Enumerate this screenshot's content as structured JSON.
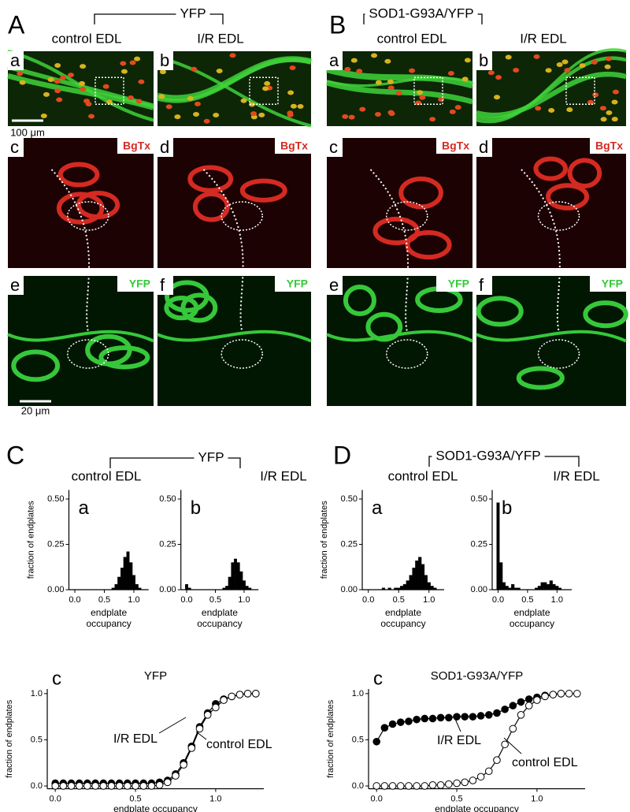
{
  "figure": {
    "image_panels": [
      {
        "letter": "A",
        "group": "YFP",
        "columns": [
          "control EDL",
          "I/R EDL"
        ],
        "tiles": [
          [
            "a",
            "b"
          ],
          [
            "c",
            "d"
          ],
          [
            "e",
            "f"
          ]
        ],
        "stains": [
          "BgTx",
          "YFP"
        ],
        "scale_bars": [
          "100 μm",
          "20 μm"
        ]
      },
      {
        "letter": "B",
        "group": "SOD1-G93A/YFP",
        "columns": [
          "control EDL",
          "I/R EDL"
        ],
        "tiles": [
          [
            "a",
            "b"
          ],
          [
            "c",
            "d"
          ],
          [
            "e",
            "f"
          ]
        ],
        "stains": [
          "BgTx",
          "YFP"
        ]
      }
    ],
    "chart_panels": [
      {
        "letter": "C",
        "group": "YFP",
        "columns": [
          "control EDL",
          "I/R EDL"
        ]
      },
      {
        "letter": "D",
        "group": "SOD1-G93A/YFP",
        "columns": [
          "control EDL",
          "I/R EDL"
        ]
      }
    ]
  },
  "chart_data": [
    {
      "type": "histogram",
      "panel_label": "a",
      "y_label": "fraction of endplates",
      "x_label": "endplate occupancy",
      "color": "#000000",
      "bins": [
        -0.025,
        0.025,
        0.075,
        0.125,
        0.175,
        0.225,
        0.275,
        0.325,
        0.375,
        0.425,
        0.475,
        0.525,
        0.575,
        0.625,
        0.675,
        0.725,
        0.775,
        0.825,
        0.875,
        0.925,
        0.975,
        1.025,
        1.075,
        1.125,
        1.175,
        1.225
      ],
      "values": [
        0,
        0,
        0,
        0,
        0,
        0,
        0,
        0,
        0,
        0,
        0,
        0,
        0,
        0.01,
        0.03,
        0.07,
        0.12,
        0.18,
        0.21,
        0.15,
        0.08,
        0.03,
        0.01,
        0,
        0
      ],
      "xlim": [
        -0.1,
        1.25
      ],
      "xticks": [
        {
          "value": 0,
          "label": "0.0"
        },
        {
          "value": 0.5,
          "label": "0.5"
        },
        {
          "value": 1,
          "label": "1.0"
        }
      ],
      "ylim": [
        0,
        0.55
      ],
      "yticks": [
        {
          "value": 0,
          "label": "0.00"
        },
        {
          "value": 0.25,
          "label": "0.25"
        },
        {
          "value": 0.5,
          "label": "0.50"
        }
      ]
    },
    {
      "type": "histogram",
      "panel_label": "b",
      "x_label": "endplate occupancy",
      "color": "#000000",
      "bins": [
        -0.025,
        0.025,
        0.075,
        0.125,
        0.175,
        0.225,
        0.275,
        0.325,
        0.375,
        0.425,
        0.475,
        0.525,
        0.575,
        0.625,
        0.675,
        0.725,
        0.775,
        0.825,
        0.875,
        0.925,
        0.975,
        1.025,
        1.075,
        1.125,
        1.175,
        1.225
      ],
      "values": [
        0.03,
        0.01,
        0,
        0,
        0,
        0,
        0,
        0,
        0,
        0,
        0,
        0,
        0,
        0.01,
        0.02,
        0.07,
        0.15,
        0.17,
        0.15,
        0.1,
        0.05,
        0.02,
        0.01,
        0,
        0
      ],
      "xlim": [
        -0.1,
        1.25
      ],
      "xticks": [
        {
          "value": 0,
          "label": "0.0"
        },
        {
          "value": 0.5,
          "label": "0.5"
        },
        {
          "value": 1,
          "label": "1.0"
        }
      ],
      "ylim": [
        0,
        0.55
      ],
      "yticks": [
        {
          "value": 0,
          "label": "0.00"
        },
        {
          "value": 0.25,
          "label": "0.25"
        },
        {
          "value": 0.5,
          "label": "0.50"
        }
      ]
    },
    {
      "type": "histogram",
      "panel_label": "a",
      "y_label": "fraction of endplates",
      "x_label": "endplate occupancy",
      "color": "#000000",
      "bins": [
        -0.025,
        0.025,
        0.075,
        0.125,
        0.175,
        0.225,
        0.275,
        0.325,
        0.375,
        0.425,
        0.475,
        0.525,
        0.575,
        0.625,
        0.675,
        0.725,
        0.775,
        0.825,
        0.875,
        0.925,
        0.975,
        1.025,
        1.075,
        1.125,
        1.175,
        1.225
      ],
      "values": [
        0,
        0,
        0,
        0,
        0,
        0.01,
        0,
        0.01,
        0,
        0.01,
        0.01,
        0.02,
        0.03,
        0.05,
        0.08,
        0.12,
        0.16,
        0.18,
        0.14,
        0.08,
        0.04,
        0.02,
        0.01,
        0,
        0
      ],
      "xlim": [
        -0.1,
        1.25
      ],
      "xticks": [
        {
          "value": 0,
          "label": "0.0"
        },
        {
          "value": 0.5,
          "label": "0.5"
        },
        {
          "value": 1,
          "label": "1.0"
        }
      ],
      "ylim": [
        0,
        0.55
      ],
      "yticks": [
        {
          "value": 0,
          "label": "0.00"
        },
        {
          "value": 0.25,
          "label": "0.25"
        },
        {
          "value": 0.5,
          "label": "0.50"
        }
      ]
    },
    {
      "type": "histogram",
      "panel_label": "b",
      "x_label": "endplate occupancy",
      "color": "#000000",
      "bins": [
        -0.025,
        0.025,
        0.075,
        0.125,
        0.175,
        0.225,
        0.275,
        0.325,
        0.375,
        0.425,
        0.475,
        0.525,
        0.575,
        0.625,
        0.675,
        0.725,
        0.775,
        0.825,
        0.875,
        0.925,
        0.975,
        1.025,
        1.075,
        1.125,
        1.175,
        1.225
      ],
      "values": [
        0.48,
        0.15,
        0.04,
        0.02,
        0.01,
        0.03,
        0.01,
        0.01,
        0,
        0,
        0,
        0,
        0,
        0.01,
        0.02,
        0.04,
        0.04,
        0.03,
        0.05,
        0.03,
        0.02,
        0.01,
        0,
        0,
        0
      ],
      "xlim": [
        -0.1,
        1.25
      ],
      "xticks": [
        {
          "value": 0,
          "label": "0.0"
        },
        {
          "value": 0.5,
          "label": "0.5"
        },
        {
          "value": 1,
          "label": "1.0"
        }
      ],
      "ylim": [
        0,
        0.55
      ],
      "yticks": [
        {
          "value": 0,
          "label": "0.00"
        },
        {
          "value": 0.25,
          "label": "0.25"
        },
        {
          "value": 0.5,
          "label": "0.50"
        }
      ]
    },
    {
      "type": "line",
      "title": "YFP",
      "panel_label": "c",
      "y_label": "fraction of endplates",
      "x_label": "endplate occupancy",
      "x": [
        0,
        0.05,
        0.1,
        0.15,
        0.2,
        0.25,
        0.3,
        0.35,
        0.4,
        0.45,
        0.5,
        0.55,
        0.6,
        0.65,
        0.7,
        0.75,
        0.8,
        0.85,
        0.9,
        0.95,
        1,
        1.05,
        1.1,
        1.15,
        1.2,
        1.25
      ],
      "series": [
        {
          "name": "I/R EDL",
          "color": "#000000",
          "marker": "filled",
          "values": [
            0.03,
            0.03,
            0.03,
            0.03,
            0.03,
            0.03,
            0.03,
            0.03,
            0.03,
            0.03,
            0.03,
            0.03,
            0.03,
            0.04,
            0.06,
            0.13,
            0.25,
            0.43,
            0.64,
            0.79,
            0.89,
            0.94,
            0.97,
            0.99,
            1,
            1
          ]
        },
        {
          "name": "control EDL",
          "color": "#000000",
          "marker": "open",
          "values": [
            0,
            0,
            0,
            0,
            0,
            0,
            0,
            0,
            0,
            0,
            0,
            0,
            0,
            0.01,
            0.04,
            0.11,
            0.23,
            0.41,
            0.62,
            0.77,
            0.85,
            0.93,
            0.97,
            0.99,
            1,
            1
          ]
        }
      ],
      "xlim": [
        -0.05,
        1.3
      ],
      "xticks": [
        {
          "value": 0,
          "label": "0.0"
        },
        {
          "value": 0.5,
          "label": "0.5"
        },
        {
          "value": 1,
          "label": "1.0"
        }
      ],
      "ylim": [
        -0.03,
        1.05
      ],
      "yticks": [
        {
          "value": 0,
          "label": "0.0"
        },
        {
          "value": 0.5,
          "label": "0.5"
        },
        {
          "value": 1,
          "label": "1.0"
        }
      ]
    },
    {
      "type": "line",
      "title": "SOD1-G93A/YFP",
      "panel_label": "c",
      "y_label": "fraction of endplates",
      "x_label": "endplate occupancy",
      "x": [
        0,
        0.05,
        0.1,
        0.15,
        0.2,
        0.25,
        0.3,
        0.35,
        0.4,
        0.45,
        0.5,
        0.55,
        0.6,
        0.65,
        0.7,
        0.75,
        0.8,
        0.85,
        0.9,
        0.95,
        1,
        1.05,
        1.1,
        1.15,
        1.2,
        1.25
      ],
      "series": [
        {
          "name": "I/R EDL",
          "color": "#000000",
          "marker": "filled",
          "values": [
            0.48,
            0.63,
            0.67,
            0.69,
            0.7,
            0.72,
            0.73,
            0.73,
            0.74,
            0.74,
            0.75,
            0.75,
            0.75,
            0.76,
            0.77,
            0.79,
            0.83,
            0.87,
            0.91,
            0.94,
            0.96,
            0.98,
            0.99,
            1,
            null,
            null
          ]
        },
        {
          "name": "control EDL",
          "color": "#000000",
          "marker": "open",
          "values": [
            0,
            0,
            0,
            0,
            0,
            0,
            0,
            0.01,
            0.01,
            0.02,
            0.03,
            0.04,
            0.06,
            0.1,
            0.16,
            0.28,
            0.45,
            0.62,
            0.77,
            0.87,
            0.93,
            0.97,
            0.99,
            1,
            1,
            1
          ]
        }
      ],
      "xlim": [
        -0.05,
        1.3
      ],
      "xticks": [
        {
          "value": 0,
          "label": "0.0"
        },
        {
          "value": 0.5,
          "label": "0.5"
        },
        {
          "value": 1,
          "label": "1.0"
        }
      ],
      "ylim": [
        -0.03,
        1.05
      ],
      "yticks": [
        {
          "value": 0,
          "label": "0.0"
        },
        {
          "value": 0.5,
          "label": "0.5"
        },
        {
          "value": 1,
          "label": "1.0"
        }
      ]
    }
  ]
}
